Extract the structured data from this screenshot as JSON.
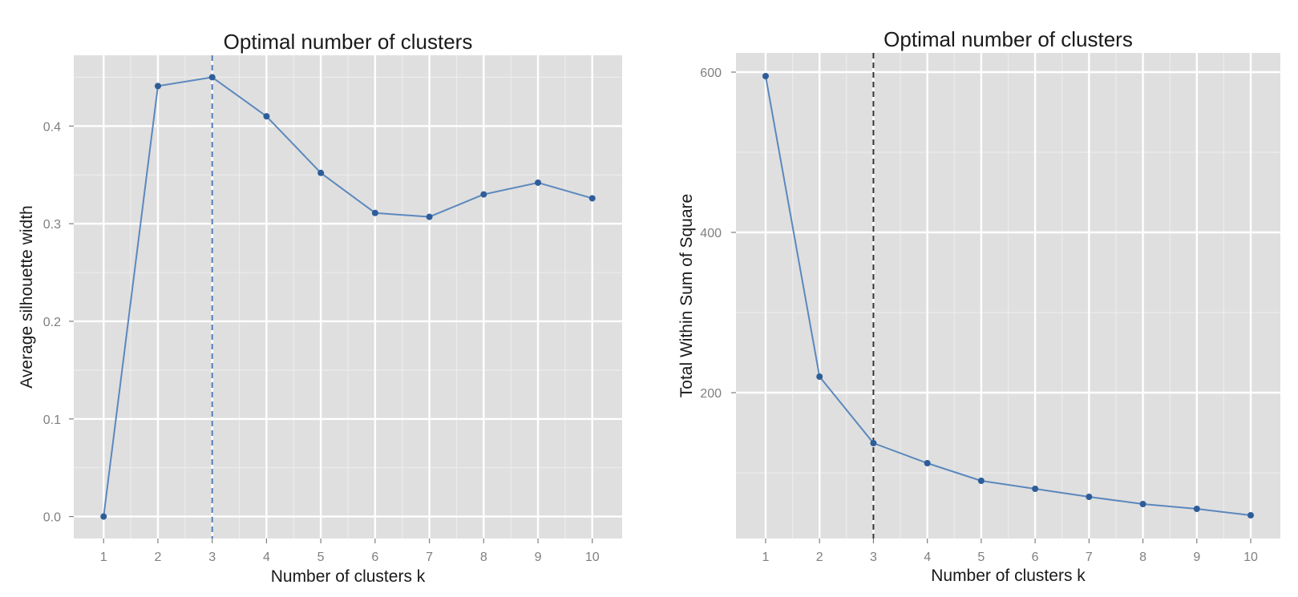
{
  "chart_data": [
    {
      "type": "line",
      "title": "Optimal number of clusters",
      "xlabel": "Number of clusters k",
      "ylabel": "Average silhouette width",
      "x": [
        1,
        2,
        3,
        4,
        5,
        6,
        7,
        8,
        9,
        10
      ],
      "x_tick_labels": [
        "1",
        "2",
        "3",
        "4",
        "5",
        "6",
        "7",
        "8",
        "9",
        "10"
      ],
      "values": [
        0.0,
        0.441,
        0.45,
        0.41,
        0.352,
        0.311,
        0.307,
        0.33,
        0.342,
        0.326
      ],
      "y_ticks": [
        0.0,
        0.1,
        0.2,
        0.3,
        0.4
      ],
      "y_tick_labels": [
        "0.0",
        "0.1",
        "0.2",
        "0.3",
        "0.4"
      ],
      "ylim": [
        -0.0225,
        0.4725
      ],
      "xlim": [
        0.45,
        10.55
      ],
      "vline": 3,
      "vline_color": "#4f7bb5",
      "grid": true,
      "line_color": "#5b88bd",
      "point_color": "#2e5d99",
      "panel_color": "#dfdfdf"
    },
    {
      "type": "line",
      "title": "Optimal number of clusters",
      "xlabel": "Number of clusters k",
      "ylabel": "Total Within Sum of Square",
      "x": [
        1,
        2,
        3,
        4,
        5,
        6,
        7,
        8,
        9,
        10
      ],
      "x_tick_labels": [
        "1",
        "2",
        "3",
        "4",
        "5",
        "6",
        "7",
        "8",
        "9",
        "10"
      ],
      "values": [
        595,
        220,
        137,
        112,
        90,
        80,
        70,
        61,
        55,
        47
      ],
      "y_ticks": [
        200,
        400,
        600
      ],
      "y_tick_labels": [
        "200",
        "400",
        "600"
      ],
      "ylim": [
        18,
        624
      ],
      "xlim": [
        0.45,
        10.55
      ],
      "vline": 3,
      "vline_color": "#333333",
      "grid": true,
      "line_color": "#5b88bd",
      "point_color": "#2e5d99",
      "panel_color": "#dfdfdf"
    }
  ]
}
